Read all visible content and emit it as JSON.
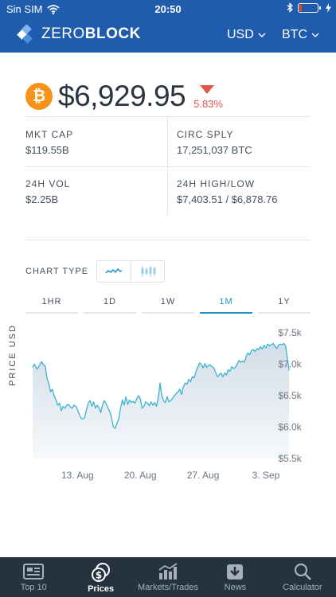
{
  "status_bar": {
    "carrier": "Sin SIM",
    "time": "20:50",
    "battery_level": 0.15
  },
  "navbar": {
    "logo_part1": "ZERO",
    "logo_part2": "BLOCK",
    "currency": "USD",
    "coin": "BTC"
  },
  "ticker": {
    "symbol_glyph": "₿",
    "price": "$6,929.95",
    "change": "5.83%",
    "direction": "down"
  },
  "stats": {
    "mkt_cap_label": "MKT CAP",
    "mkt_cap_value": "$119.55B",
    "circ_sply_label": "CIRC SPLY",
    "circ_sply_value": "17,251,037 BTC",
    "vol_label": "24H VOL",
    "vol_value": "$2.25B",
    "highlow_label": "24H HIGH/LOW",
    "highlow_value": "$7,403.51 / $6,878.76"
  },
  "chart_controls": {
    "chart_type_label": "CHART TYPE",
    "chart_types": [
      "line",
      "candlestick"
    ],
    "selected_type": "line",
    "ranges": [
      "1HR",
      "1D",
      "1W",
      "1M",
      "1Y"
    ],
    "selected_range": "1M"
  },
  "chart_data": {
    "type": "area",
    "ylabel": "PRICE USD",
    "ylim": [
      5500,
      7500
    ],
    "y_ticks": [
      "$7.5k",
      "$7.0k",
      "$6.5k",
      "$6.0k",
      "$5.5k"
    ],
    "y_tick_values": [
      7500,
      7000,
      6500,
      6000,
      5500
    ],
    "x_ticks": [
      "13. Aug",
      "20. Aug",
      "27. Aug",
      "3. Sep"
    ],
    "x_tick_days": [
      5,
      12,
      19,
      26
    ],
    "x_domain_days": [
      0,
      30
    ],
    "series": [
      {
        "values": [
          [
            0.0,
            6950
          ],
          [
            0.2,
            7000
          ],
          [
            0.5,
            6920
          ],
          [
            0.8,
            6990
          ],
          [
            1.0,
            7040
          ],
          [
            1.2,
            6990
          ],
          [
            1.4,
            6970
          ],
          [
            1.6,
            6780
          ],
          [
            1.8,
            6690
          ],
          [
            2.0,
            6560
          ],
          [
            2.2,
            6600
          ],
          [
            2.4,
            6500
          ],
          [
            2.6,
            6430
          ],
          [
            2.8,
            6350
          ],
          [
            3.0,
            6380
          ],
          [
            3.2,
            6260
          ],
          [
            3.4,
            6330
          ],
          [
            3.6,
            6300
          ],
          [
            3.8,
            6350
          ],
          [
            4.0,
            6360
          ],
          [
            4.2,
            6320
          ],
          [
            4.4,
            6300
          ],
          [
            4.6,
            6350
          ],
          [
            4.8,
            6330
          ],
          [
            5.0,
            6280
          ],
          [
            5.2,
            6200
          ],
          [
            5.4,
            6140
          ],
          [
            5.6,
            6130
          ],
          [
            5.8,
            6150
          ],
          [
            6.0,
            6280
          ],
          [
            6.2,
            6380
          ],
          [
            6.4,
            6420
          ],
          [
            6.6,
            6330
          ],
          [
            6.8,
            6400
          ],
          [
            7.0,
            6300
          ],
          [
            7.2,
            6350
          ],
          [
            7.4,
            6300
          ],
          [
            7.6,
            6230
          ],
          [
            7.8,
            6360
          ],
          [
            8.0,
            6420
          ],
          [
            8.2,
            6370
          ],
          [
            8.4,
            6300
          ],
          [
            8.6,
            6250
          ],
          [
            8.8,
            6150
          ],
          [
            9.0,
            6000
          ],
          [
            9.2,
            5980
          ],
          [
            9.4,
            6060
          ],
          [
            9.6,
            6130
          ],
          [
            9.8,
            6300
          ],
          [
            10.0,
            6430
          ],
          [
            10.2,
            6350
          ],
          [
            10.4,
            6480
          ],
          [
            10.6,
            6360
          ],
          [
            10.8,
            6430
          ],
          [
            11.0,
            6390
          ],
          [
            11.2,
            6410
          ],
          [
            11.4,
            6380
          ],
          [
            11.6,
            6450
          ],
          [
            11.8,
            6500
          ],
          [
            12.0,
            6450
          ],
          [
            12.2,
            6300
          ],
          [
            12.4,
            6330
          ],
          [
            12.6,
            6400
          ],
          [
            12.8,
            6380
          ],
          [
            13.0,
            6340
          ],
          [
            13.2,
            6400
          ],
          [
            13.4,
            6350
          ],
          [
            13.6,
            6390
          ],
          [
            13.8,
            6330
          ],
          [
            14.0,
            6460
          ],
          [
            14.2,
            6700
          ],
          [
            14.4,
            6500
          ],
          [
            14.6,
            6420
          ],
          [
            14.8,
            6390
          ],
          [
            15.0,
            6480
          ],
          [
            15.2,
            6400
          ],
          [
            15.4,
            6420
          ],
          [
            15.6,
            6460
          ],
          [
            15.8,
            6500
          ],
          [
            16.0,
            6530
          ],
          [
            16.2,
            6560
          ],
          [
            16.4,
            6600
          ],
          [
            16.6,
            6520
          ],
          [
            16.8,
            6640
          ],
          [
            17.0,
            6700
          ],
          [
            17.2,
            6680
          ],
          [
            17.4,
            6760
          ],
          [
            17.6,
            6720
          ],
          [
            17.8,
            6800
          ],
          [
            18.0,
            6780
          ],
          [
            18.2,
            6880
          ],
          [
            18.4,
            6950
          ],
          [
            18.6,
            7020
          ],
          [
            18.8,
            7000
          ],
          [
            19.0,
            6940
          ],
          [
            19.2,
            7010
          ],
          [
            19.4,
            6950
          ],
          [
            19.6,
            6980
          ],
          [
            19.8,
            6990
          ],
          [
            20.0,
            6960
          ],
          [
            20.2,
            6940
          ],
          [
            20.4,
            6870
          ],
          [
            20.6,
            6800
          ],
          [
            20.8,
            6830
          ],
          [
            21.0,
            6860
          ],
          [
            21.2,
            6800
          ],
          [
            21.4,
            6860
          ],
          [
            21.6,
            6830
          ],
          [
            21.8,
            6910
          ],
          [
            22.0,
            6890
          ],
          [
            22.2,
            6960
          ],
          [
            22.4,
            6930
          ],
          [
            22.6,
            6950
          ],
          [
            22.8,
            7000
          ],
          [
            23.0,
            7060
          ],
          [
            23.2,
            7030
          ],
          [
            23.4,
            7050
          ],
          [
            23.6,
            7030
          ],
          [
            23.8,
            7120
          ],
          [
            24.0,
            7180
          ],
          [
            24.2,
            7150
          ],
          [
            24.4,
            7220
          ],
          [
            24.6,
            7230
          ],
          [
            24.8,
            7200
          ],
          [
            25.0,
            7250
          ],
          [
            25.2,
            7230
          ],
          [
            25.4,
            7280
          ],
          [
            25.6,
            7240
          ],
          [
            25.8,
            7300
          ],
          [
            26.0,
            7260
          ],
          [
            26.2,
            7320
          ],
          [
            26.4,
            7290
          ],
          [
            26.6,
            7310
          ],
          [
            26.8,
            7330
          ],
          [
            27.0,
            7290
          ],
          [
            27.2,
            7250
          ],
          [
            27.4,
            7300
          ],
          [
            27.6,
            7320
          ],
          [
            27.8,
            7310
          ],
          [
            28.0,
            7330
          ],
          [
            28.2,
            7290
          ],
          [
            28.4,
            7080
          ],
          [
            28.6,
            6900
          ]
        ]
      }
    ]
  },
  "tabbar": {
    "items": [
      {
        "label": "Top 10",
        "icon": "newspaper-icon"
      },
      {
        "label": "Prices",
        "icon": "coins-icon"
      },
      {
        "label": "Markets/Trades",
        "icon": "bar-chart-icon"
      },
      {
        "label": "News",
        "icon": "download-icon"
      },
      {
        "label": "Calculator",
        "icon": "search-icon"
      }
    ],
    "active": "Prices"
  },
  "colors": {
    "brand_blue": "#1f5cae",
    "accent_cyan": "#1e90c8",
    "down_red": "#e4554b",
    "btc_orange": "#f7931a",
    "tabbar_bg": "#263240",
    "chart_line": "#3bb3cf"
  }
}
